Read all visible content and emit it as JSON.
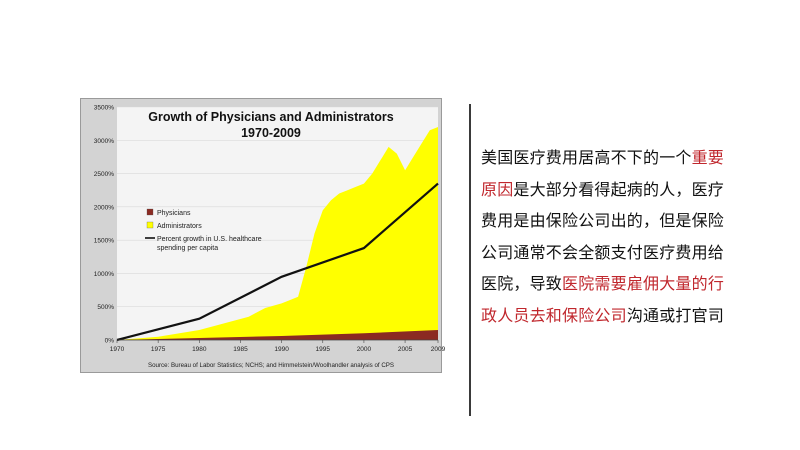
{
  "chart_data": {
    "type": "area",
    "title": "Growth of Physicians and Administrators",
    "subtitle": "1970-2009",
    "xlabel": "",
    "ylabel": "",
    "x_ticks": [
      "1970",
      "1975",
      "1980",
      "1985",
      "1990",
      "1995",
      "2000",
      "2005",
      "2009"
    ],
    "y_ticks": [
      "0%",
      "500%",
      "1000%",
      "1500%",
      "2000%",
      "2500%",
      "3000%",
      "3500%"
    ],
    "xlim": [
      1970,
      2009
    ],
    "ylim": [
      0,
      3500
    ],
    "series": [
      {
        "name": "Administrators",
        "kind": "area",
        "color": "#ffff00",
        "points": [
          [
            1970,
            0
          ],
          [
            1975,
            50
          ],
          [
            1980,
            150
          ],
          [
            1983,
            250
          ],
          [
            1986,
            350
          ],
          [
            1988,
            480
          ],
          [
            1990,
            550
          ],
          [
            1991,
            600
          ],
          [
            1992,
            650
          ],
          [
            1993,
            1100
          ],
          [
            1994,
            1600
          ],
          [
            1995,
            1950
          ],
          [
            1996,
            2100
          ],
          [
            1997,
            2200
          ],
          [
            1998,
            2250
          ],
          [
            1999,
            2300
          ],
          [
            2000,
            2350
          ],
          [
            2001,
            2500
          ],
          [
            2002,
            2700
          ],
          [
            2003,
            2900
          ],
          [
            2004,
            2800
          ],
          [
            2005,
            2550
          ],
          [
            2006,
            2750
          ],
          [
            2007,
            2950
          ],
          [
            2008,
            3150
          ],
          [
            2009,
            3200
          ]
        ]
      },
      {
        "name": "Physicians",
        "kind": "area",
        "color": "#8b2a22",
        "points": [
          [
            1970,
            0
          ],
          [
            1980,
            30
          ],
          [
            1990,
            60
          ],
          [
            2000,
            100
          ],
          [
            2009,
            150
          ]
        ]
      },
      {
        "name": "Percent growth in U.S. healthcare spending per capita",
        "kind": "line",
        "color": "#111111",
        "points": [
          [
            1970,
            0
          ],
          [
            1980,
            320
          ],
          [
            1990,
            950
          ],
          [
            2000,
            1380
          ],
          [
            2009,
            2350
          ]
        ]
      }
    ],
    "legend": "inside-left",
    "source": "Source: Bureau of Labor Statistics; NCHS; and Himmelstein/Woolhandler analysis of CPS"
  },
  "description": {
    "segments": [
      {
        "text": "美国医疗费用居高不下的一个",
        "highlight": false
      },
      {
        "text": "重要原因",
        "highlight": true
      },
      {
        "text": "是大部分看得起病的人，医疗费用是由保险公司出的，但是保险公司通常不会全额支付医疗费用给医院，导致",
        "highlight": false
      },
      {
        "text": "医院需要雇佣大量的行政人员去和保险公司",
        "highlight": true
      },
      {
        "text": "沟通或打官司",
        "highlight": false
      }
    ],
    "highlight_color": "#c0272d"
  }
}
